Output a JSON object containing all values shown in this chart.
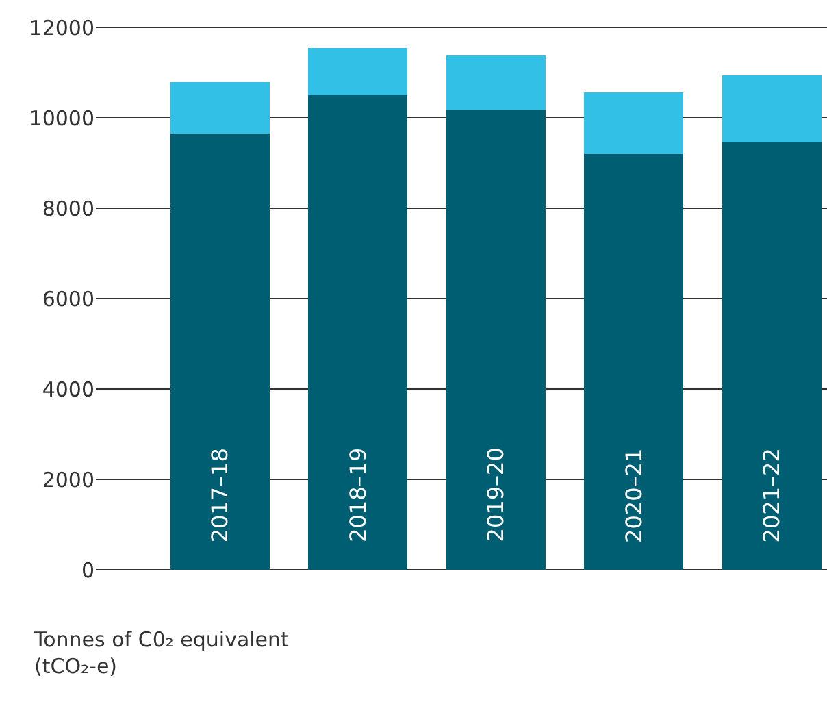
{
  "chart_data": {
    "type": "bar",
    "stacked": true,
    "ylabel": "Tonnes of C0₂ equivalent\n(tCO₂-e)",
    "categories": [
      "2017–18",
      "2018–19",
      "2019–20",
      "2020–21",
      "2021–22"
    ],
    "series": [
      {
        "color": "#005e73",
        "values": [
          9650,
          10500,
          10180,
          9190,
          9460
        ]
      },
      {
        "color": "#32c0e6",
        "values": [
          1140,
          1050,
          1200,
          1370,
          1480
        ]
      }
    ],
    "ylim": [
      0,
      12000
    ],
    "yticks": [
      0,
      2000,
      4000,
      6000,
      8000,
      10000,
      12000
    ],
    "grid": "y"
  }
}
